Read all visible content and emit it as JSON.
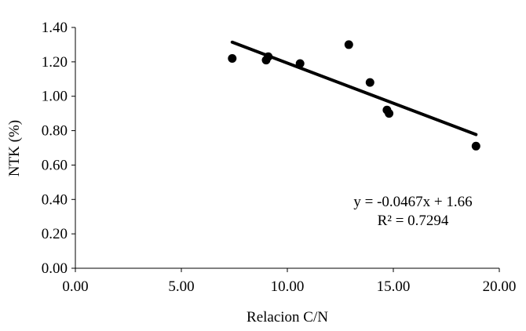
{
  "chart_data": {
    "type": "scatter",
    "xlabel": "Relacion C/N",
    "ylabel": "NTK (%)",
    "xlim": [
      0,
      20
    ],
    "ylim": [
      0,
      1.4
    ],
    "x_ticks": [
      "0.00",
      "5.00",
      "10.00",
      "15.00",
      "20.00"
    ],
    "y_ticks": [
      "0.00",
      "0.20",
      "0.40",
      "0.60",
      "0.80",
      "1.00",
      "1.20",
      "1.40"
    ],
    "grid": false,
    "series": [
      {
        "points": [
          {
            "x": 7.4,
            "y": 1.22
          },
          {
            "x": 9.0,
            "y": 1.21
          },
          {
            "x": 9.1,
            "y": 1.23
          },
          {
            "x": 10.6,
            "y": 1.19
          },
          {
            "x": 12.9,
            "y": 1.3
          },
          {
            "x": 13.9,
            "y": 1.08
          },
          {
            "x": 14.7,
            "y": 0.92
          },
          {
            "x": 14.8,
            "y": 0.9
          },
          {
            "x": 18.9,
            "y": 0.71
          }
        ]
      }
    ],
    "trendline": {
      "type": "linear",
      "slope": -0.0467,
      "intercept": 1.66,
      "x_range": [
        7.4,
        18.9
      ]
    },
    "annotations": {
      "equation": "y = -0.0467x + 1.66",
      "r_squared": "R² = 0.7294"
    }
  }
}
